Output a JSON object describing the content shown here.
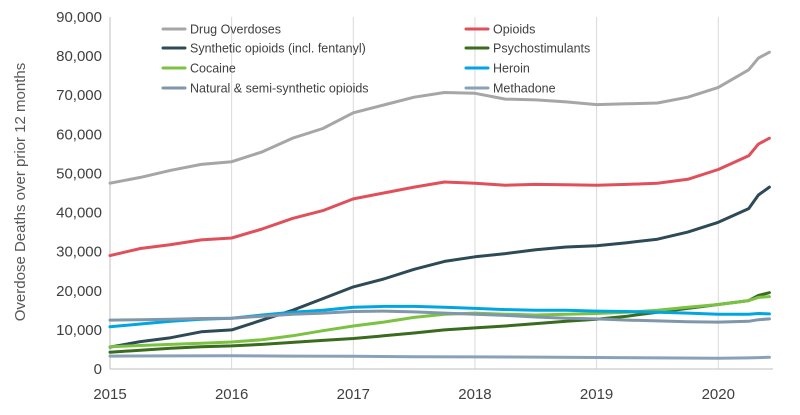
{
  "chart_data": {
    "type": "line",
    "title": "",
    "xlabel": "",
    "ylabel": "Overdose Deaths over prior 12 months",
    "xlim": [
      2015,
      2020.45
    ],
    "ylim": [
      0,
      90000
    ],
    "x_ticks": [
      2015,
      2016,
      2017,
      2018,
      2019,
      2020
    ],
    "y_ticks": [
      {
        "value": 0,
        "label": "0"
      },
      {
        "value": 10000,
        "label": "10,000"
      },
      {
        "value": 20000,
        "label": "20,000"
      },
      {
        "value": 30000,
        "label": "30,000"
      },
      {
        "value": 40000,
        "label": "40,000"
      },
      {
        "value": 50000,
        "label": "50,000"
      },
      {
        "value": 60000,
        "label": "60,000"
      },
      {
        "value": 70000,
        "label": "70,000"
      },
      {
        "value": 80000,
        "label": "80,000"
      },
      {
        "value": 90000,
        "label": "90,000"
      }
    ],
    "grid": "vertical",
    "legend": "top, two columns",
    "series": [
      {
        "name": "Drug Overdoses",
        "color": "#a6a6a6",
        "points": [
          [
            2015,
            47500
          ],
          [
            2015.25,
            49000
          ],
          [
            2015.5,
            50800
          ],
          [
            2015.75,
            52300
          ],
          [
            2016,
            53000
          ],
          [
            2016.25,
            55500
          ],
          [
            2016.5,
            59000
          ],
          [
            2016.75,
            61500
          ],
          [
            2017,
            65500
          ],
          [
            2017.25,
            67500
          ],
          [
            2017.5,
            69500
          ],
          [
            2017.75,
            70700
          ],
          [
            2018,
            70500
          ],
          [
            2018.25,
            69000
          ],
          [
            2018.5,
            68800
          ],
          [
            2018.75,
            68300
          ],
          [
            2019,
            67600
          ],
          [
            2019.25,
            67800
          ],
          [
            2019.5,
            68000
          ],
          [
            2019.75,
            69500
          ],
          [
            2020,
            72000
          ],
          [
            2020.25,
            76500
          ],
          [
            2020.33,
            79500
          ],
          [
            2020.42,
            81000
          ]
        ]
      },
      {
        "name": "Opioids",
        "color": "#e0505a",
        "points": [
          [
            2015,
            29000
          ],
          [
            2015.25,
            30800
          ],
          [
            2015.5,
            31800
          ],
          [
            2015.75,
            33000
          ],
          [
            2016,
            33500
          ],
          [
            2016.25,
            35800
          ],
          [
            2016.5,
            38500
          ],
          [
            2016.75,
            40500
          ],
          [
            2017,
            43500
          ],
          [
            2017.25,
            45000
          ],
          [
            2017.5,
            46500
          ],
          [
            2017.75,
            47800
          ],
          [
            2018,
            47500
          ],
          [
            2018.25,
            47000
          ],
          [
            2018.5,
            47200
          ],
          [
            2018.75,
            47100
          ],
          [
            2019,
            47000
          ],
          [
            2019.25,
            47200
          ],
          [
            2019.5,
            47500
          ],
          [
            2019.75,
            48500
          ],
          [
            2020,
            51000
          ],
          [
            2020.25,
            54500
          ],
          [
            2020.33,
            57500
          ],
          [
            2020.42,
            59000
          ]
        ]
      },
      {
        "name": "Synthetic opioids (incl. fentanyl)",
        "color": "#2e4a56",
        "points": [
          [
            2015,
            5600
          ],
          [
            2015.25,
            7000
          ],
          [
            2015.5,
            8000
          ],
          [
            2015.75,
            9500
          ],
          [
            2016,
            10000
          ],
          [
            2016.25,
            12500
          ],
          [
            2016.5,
            15000
          ],
          [
            2016.75,
            18000
          ],
          [
            2017,
            21000
          ],
          [
            2017.25,
            23000
          ],
          [
            2017.5,
            25500
          ],
          [
            2017.75,
            27500
          ],
          [
            2018,
            28700
          ],
          [
            2018.25,
            29500
          ],
          [
            2018.5,
            30500
          ],
          [
            2018.75,
            31200
          ],
          [
            2019,
            31500
          ],
          [
            2019.25,
            32300
          ],
          [
            2019.5,
            33200
          ],
          [
            2019.75,
            35000
          ],
          [
            2020,
            37500
          ],
          [
            2020.25,
            41000
          ],
          [
            2020.33,
            44500
          ],
          [
            2020.42,
            46500
          ]
        ]
      },
      {
        "name": "Psychostimulants",
        "color": "#3a6b1e",
        "points": [
          [
            2015,
            4300
          ],
          [
            2015.25,
            4800
          ],
          [
            2015.5,
            5300
          ],
          [
            2015.75,
            5700
          ],
          [
            2016,
            5900
          ],
          [
            2016.25,
            6300
          ],
          [
            2016.5,
            6800
          ],
          [
            2016.75,
            7300
          ],
          [
            2017,
            7800
          ],
          [
            2017.25,
            8500
          ],
          [
            2017.5,
            9200
          ],
          [
            2017.75,
            10000
          ],
          [
            2018,
            10500
          ],
          [
            2018.25,
            11000
          ],
          [
            2018.5,
            11600
          ],
          [
            2018.75,
            12200
          ],
          [
            2019,
            12700
          ],
          [
            2019.25,
            13500
          ],
          [
            2019.5,
            14500
          ],
          [
            2019.75,
            15500
          ],
          [
            2020,
            16500
          ],
          [
            2020.25,
            17500
          ],
          [
            2020.33,
            18800
          ],
          [
            2020.42,
            19500
          ]
        ]
      },
      {
        "name": "Cocaine",
        "color": "#7cc242",
        "points": [
          [
            2015,
            5700
          ],
          [
            2015.25,
            6000
          ],
          [
            2015.5,
            6300
          ],
          [
            2015.75,
            6600
          ],
          [
            2016,
            6900
          ],
          [
            2016.25,
            7500
          ],
          [
            2016.5,
            8500
          ],
          [
            2016.75,
            9800
          ],
          [
            2017,
            11000
          ],
          [
            2017.25,
            12000
          ],
          [
            2017.5,
            13200
          ],
          [
            2017.75,
            14000
          ],
          [
            2018,
            14300
          ],
          [
            2018.25,
            14000
          ],
          [
            2018.5,
            13800
          ],
          [
            2018.75,
            14000
          ],
          [
            2019,
            14200
          ],
          [
            2019.25,
            14500
          ],
          [
            2019.5,
            15000
          ],
          [
            2019.75,
            15800
          ],
          [
            2020,
            16500
          ],
          [
            2020.25,
            17500
          ],
          [
            2020.33,
            18300
          ],
          [
            2020.42,
            18500
          ]
        ]
      },
      {
        "name": "Heroin",
        "color": "#00a6e2",
        "points": [
          [
            2015,
            10800
          ],
          [
            2015.25,
            11500
          ],
          [
            2015.5,
            12200
          ],
          [
            2015.75,
            12700
          ],
          [
            2016,
            13000
          ],
          [
            2016.25,
            13800
          ],
          [
            2016.5,
            14500
          ],
          [
            2016.75,
            15000
          ],
          [
            2017,
            15800
          ],
          [
            2017.25,
            16000
          ],
          [
            2017.5,
            16000
          ],
          [
            2017.75,
            15800
          ],
          [
            2018,
            15500
          ],
          [
            2018.25,
            15200
          ],
          [
            2018.5,
            15000
          ],
          [
            2018.75,
            15000
          ],
          [
            2019,
            14800
          ],
          [
            2019.25,
            14700
          ],
          [
            2019.5,
            14500
          ],
          [
            2019.75,
            14300
          ],
          [
            2020,
            14000
          ],
          [
            2020.25,
            14000
          ],
          [
            2020.33,
            14200
          ],
          [
            2020.42,
            14100
          ]
        ]
      },
      {
        "name": "Natural & semi-synthetic opioids",
        "color": "#7f96ab",
        "points": [
          [
            2015,
            12500
          ],
          [
            2015.25,
            12600
          ],
          [
            2015.5,
            12700
          ],
          [
            2015.75,
            12900
          ],
          [
            2016,
            13000
          ],
          [
            2016.25,
            13500
          ],
          [
            2016.5,
            14000
          ],
          [
            2016.75,
            14300
          ],
          [
            2017,
            14700
          ],
          [
            2017.25,
            14800
          ],
          [
            2017.5,
            14600
          ],
          [
            2017.75,
            14300
          ],
          [
            2018,
            14000
          ],
          [
            2018.25,
            13700
          ],
          [
            2018.5,
            13300
          ],
          [
            2018.75,
            13000
          ],
          [
            2019,
            12800
          ],
          [
            2019.25,
            12500
          ],
          [
            2019.5,
            12300
          ],
          [
            2019.75,
            12100
          ],
          [
            2020,
            12000
          ],
          [
            2020.25,
            12200
          ],
          [
            2020.33,
            12600
          ],
          [
            2020.42,
            12800
          ]
        ]
      },
      {
        "name": "Methadone",
        "color": "#8aa2b8",
        "points": [
          [
            2015,
            3300
          ],
          [
            2015.5,
            3350
          ],
          [
            2016,
            3400
          ],
          [
            2016.5,
            3300
          ],
          [
            2017,
            3250
          ],
          [
            2017.5,
            3150
          ],
          [
            2018,
            3100
          ],
          [
            2018.5,
            3050
          ],
          [
            2019,
            2950
          ],
          [
            2019.5,
            2850
          ],
          [
            2020,
            2750
          ],
          [
            2020.25,
            2850
          ],
          [
            2020.42,
            3000
          ]
        ]
      }
    ]
  }
}
